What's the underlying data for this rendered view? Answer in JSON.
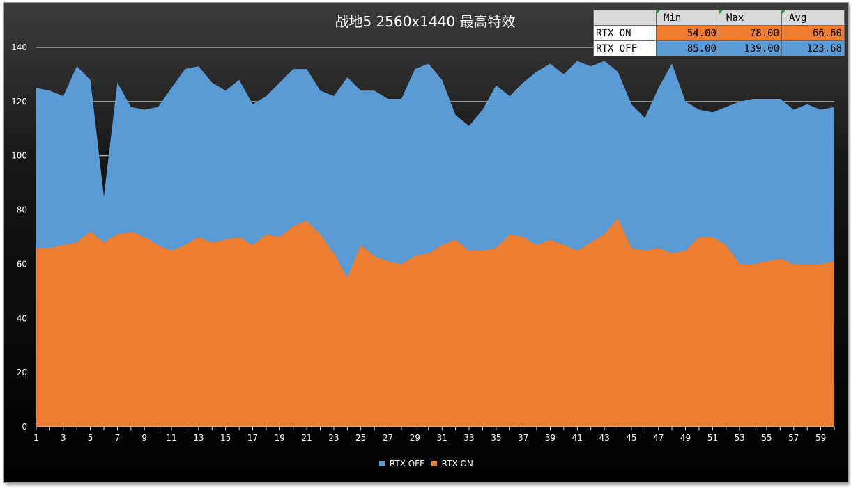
{
  "chart_data": {
    "type": "area",
    "title": "战地5 2560x1440 最高特效",
    "xlabel": "",
    "ylabel": "",
    "ylim": [
      0,
      140
    ],
    "yticks": [
      0,
      20,
      40,
      60,
      80,
      100,
      120,
      140
    ],
    "x": [
      1,
      2,
      3,
      4,
      5,
      6,
      7,
      8,
      9,
      10,
      11,
      12,
      13,
      14,
      15,
      16,
      17,
      18,
      19,
      20,
      21,
      22,
      23,
      24,
      25,
      26,
      27,
      28,
      29,
      30,
      31,
      32,
      33,
      34,
      35,
      36,
      37,
      38,
      39,
      40,
      41,
      42,
      43,
      44,
      45,
      46,
      47,
      48,
      49,
      50,
      51,
      52,
      53,
      54,
      55,
      56,
      57,
      58,
      59,
      60
    ],
    "xtick_labels": [
      1,
      3,
      5,
      7,
      9,
      11,
      13,
      15,
      17,
      19,
      21,
      23,
      25,
      27,
      29,
      31,
      33,
      35,
      37,
      39,
      41,
      43,
      45,
      47,
      49,
      51,
      53,
      55,
      57,
      59
    ],
    "grid": "horizontal major (120, 140)",
    "legend_position": "bottom",
    "series": [
      {
        "name": "RTX OFF",
        "color": "#5b9bd5",
        "values": [
          125,
          124,
          122,
          133,
          128,
          85,
          127,
          118,
          117,
          118,
          125,
          132,
          133,
          127,
          124,
          128,
          119,
          122,
          127,
          132,
          132,
          124,
          122,
          129,
          124,
          124,
          121,
          121,
          132,
          134,
          128,
          115,
          111,
          117,
          126,
          122,
          127,
          131,
          134,
          130,
          135,
          133,
          135,
          131,
          119,
          114,
          125,
          134,
          120,
          117,
          116,
          118,
          120,
          121,
          121,
          121,
          117,
          119,
          117,
          118
        ]
      },
      {
        "name": "RTX ON",
        "color": "#ed7d31",
        "values": [
          66,
          66,
          67,
          68,
          72,
          68,
          71,
          72,
          70,
          67,
          65,
          67,
          70,
          68,
          69,
          70,
          67,
          71,
          70,
          74,
          76,
          71,
          64,
          55,
          67,
          63,
          61,
          60,
          63,
          64,
          67,
          69,
          65,
          65,
          66,
          71,
          70,
          67,
          69,
          67,
          65,
          68,
          71,
          77,
          66,
          65,
          66,
          64,
          65,
          70,
          70,
          67,
          60,
          60,
          61,
          62,
          60,
          60,
          60,
          61
        ]
      }
    ]
  },
  "stats_table": {
    "headers": [
      "",
      "Min",
      "Max",
      "Avg"
    ],
    "rows": [
      {
        "label": "RTX ON",
        "min": "54.00",
        "max": "78.00",
        "avg": "66.60",
        "color": "#ed7d31"
      },
      {
        "label": "RTX OFF",
        "min": "85.00",
        "max": "139.00",
        "avg": "123.68",
        "color": "#5b9bd5"
      }
    ]
  },
  "legend": [
    {
      "label": "RTX OFF",
      "color": "#5b9bd5"
    },
    {
      "label": "RTX ON",
      "color": "#ed7d31"
    }
  ]
}
